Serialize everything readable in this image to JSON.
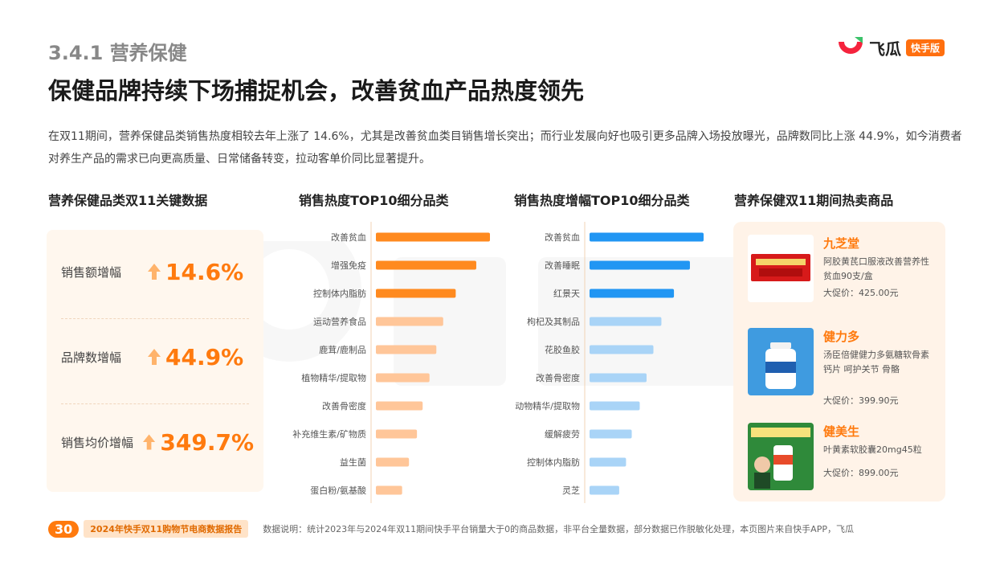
{
  "header": {
    "section": "3.4.1 营养保健",
    "title": "保健品牌持续下场捕捉机会，改善贫血产品热度领先",
    "logo_text": "飞瓜",
    "logo_badge": "快手版"
  },
  "intro": "在双11期间，营养保健品类销售热度相较去年上涨了 14.6%，尤其是改善贫血类目销售增长突出；而行业发展向好也吸引更多品牌入场投放曝光，品牌数同比上涨 44.9%，如今消费者对养生产品的需求已向更高质量、日常储备转变，拉动客单价同比显著提升。",
  "columns": {
    "kpi_title": "营养保健品类双11关键数据",
    "chart1_title": "销售热度TOP10细分品类",
    "chart2_title": "销售热度增幅TOP10细分品类",
    "products_title": "营养保健双11期间热卖商品"
  },
  "kpis": [
    {
      "label": "销售额增幅",
      "value": "14.6%"
    },
    {
      "label": "品牌数增幅",
      "value": "44.9%"
    },
    {
      "label": "销售均价增幅",
      "value": "349.7%"
    }
  ],
  "chart_data": [
    {
      "type": "bar",
      "orientation": "horizontal",
      "title": "销售热度TOP10细分品类",
      "categories": [
        "改善贫血",
        "增强免疫",
        "控制体内脂肪",
        "运动营养食品",
        "鹿茸/鹿制品",
        "植物精华/提取物",
        "改善骨密度",
        "补充维生素/矿物质",
        "益生菌",
        "蛋白粉/氨基酸"
      ],
      "values": [
        100,
        88,
        70,
        59,
        53,
        47,
        41,
        36,
        29,
        23
      ],
      "colors": [
        "#ff8a1f",
        "#ff8a1f",
        "#ff8a1f",
        "#ffc699",
        "#ffc699",
        "#ffc699",
        "#ffc699",
        "#ffc699",
        "#ffc699",
        "#ffc699"
      ]
    },
    {
      "type": "bar",
      "orientation": "horizontal",
      "title": "销售热度增幅TOP10细分品类",
      "categories": [
        "改善贫血",
        "改善睡眠",
        "红景天",
        "枸杞及其制品",
        "花胶鱼胶",
        "改善骨密度",
        "动物精华/提取物",
        "缓解疲劳",
        "控制体内脂肪",
        "灵芝"
      ],
      "values": [
        100,
        88,
        74,
        63,
        56,
        50,
        44,
        37,
        32,
        26
      ],
      "colors": [
        "#2196f3",
        "#2196f3",
        "#2196f3",
        "#a9d4f7",
        "#a9d4f7",
        "#a9d4f7",
        "#a9d4f7",
        "#a9d4f7",
        "#a9d4f7",
        "#a9d4f7"
      ]
    }
  ],
  "products": [
    {
      "brand": "九芝堂",
      "desc": "阿胶黄芪口服液改善营养性贫血90支/盒",
      "price": "大促价：425.00元"
    },
    {
      "brand": "健力多",
      "desc": "汤臣倍健健力多氨糖软骨素钙片 呵护关节 骨骼",
      "price": "大促价：399.90元"
    },
    {
      "brand": "健美生",
      "desc": "叶黄素软胶囊20mg45粒",
      "price": "大促价：899.00元"
    }
  ],
  "footer": {
    "page": "30",
    "report": "2024年快手双11购物节电商数据报告",
    "note": "数据说明：统计2023年与2024年双11期间快手平台销量大于0的商品数据，非平台全量数据，部分数据已作脱敏化处理，本页图片来自快手APP，飞瓜"
  }
}
